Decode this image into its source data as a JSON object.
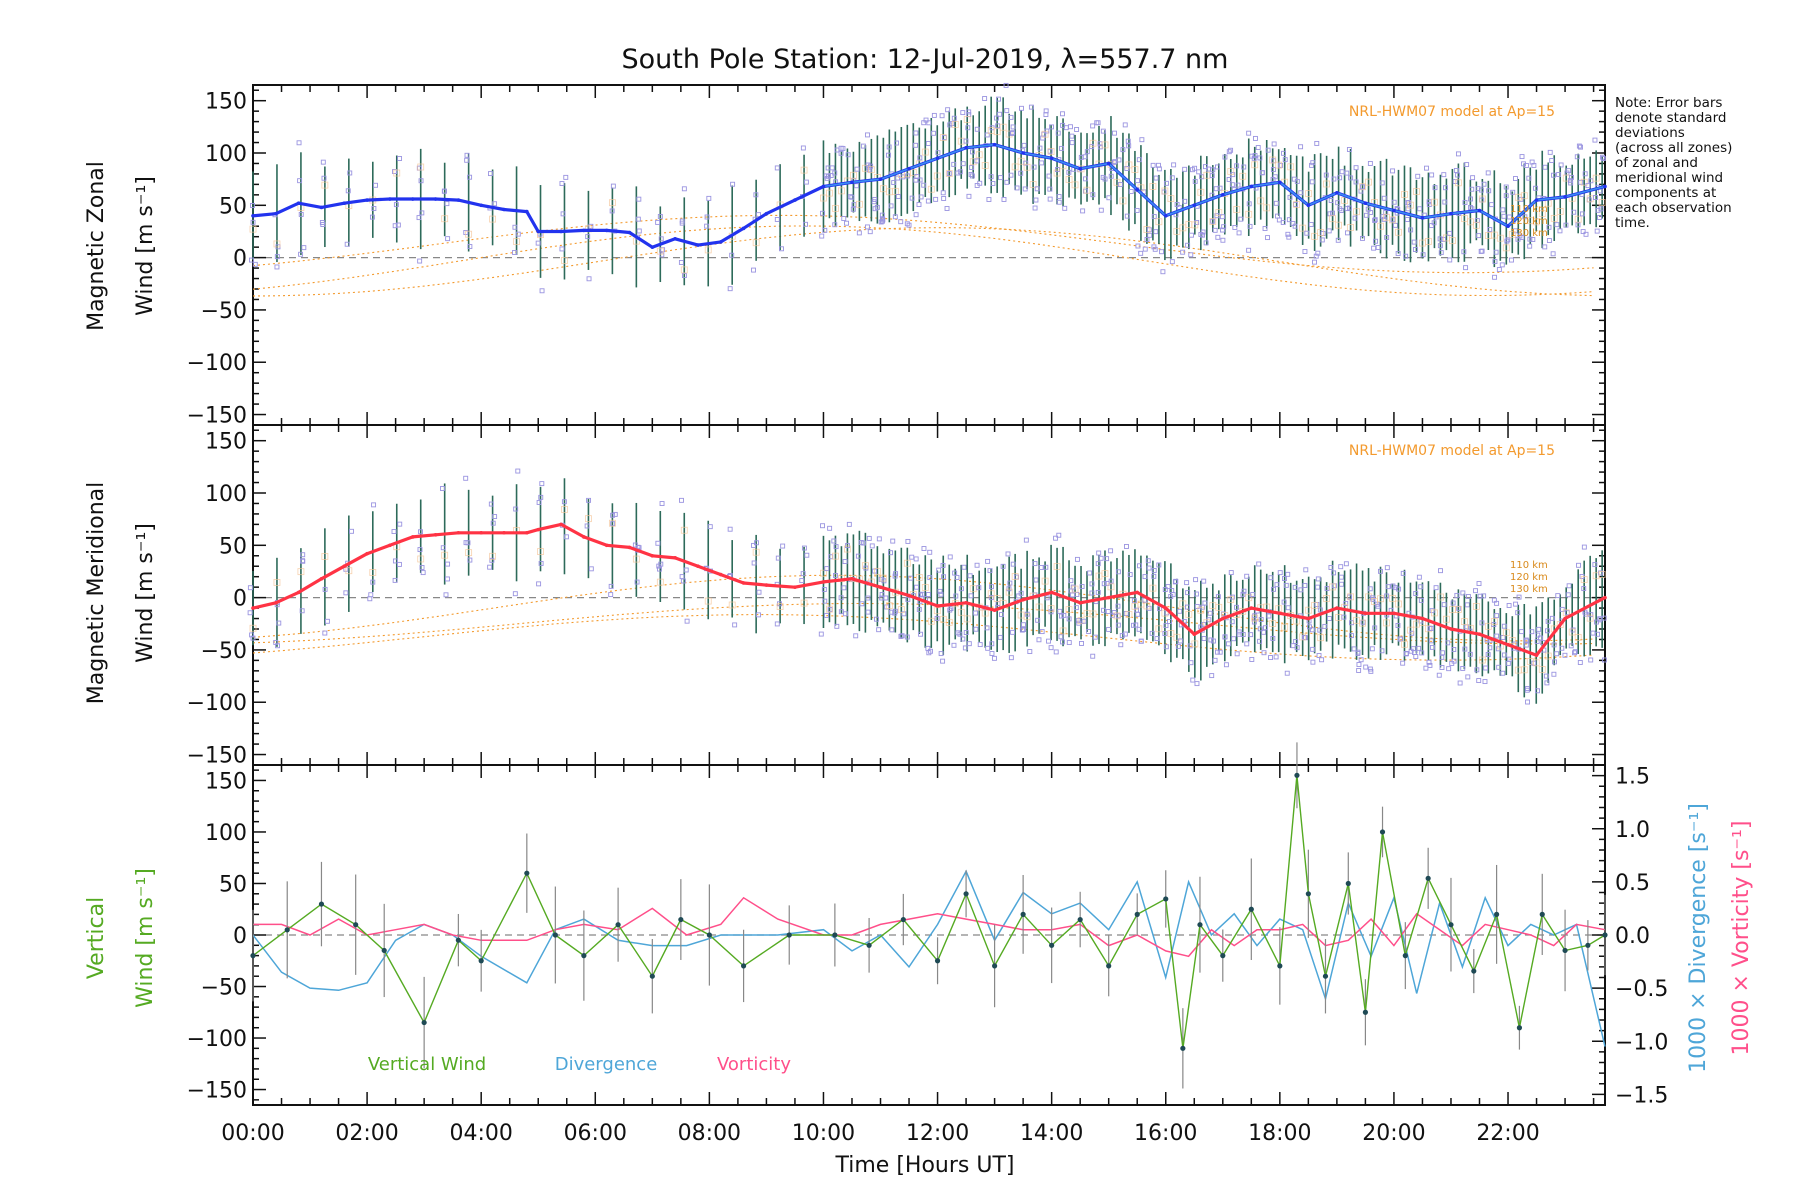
{
  "chart_data": {
    "type": "line",
    "title": "South Pole Station: 12-Jul-2019, λ=557.7 nm",
    "note": [
      "Note: Error bars",
      "denote standard",
      "deviations",
      "(across all zones)",
      "of zonal and",
      "meridional wind",
      "components at",
      "each observation",
      "time."
    ],
    "xlabel": "Time [Hours UT]",
    "x_ticks": [
      "00:00",
      "02:00",
      "04:00",
      "06:00",
      "08:00",
      "10:00",
      "12:00",
      "14:00",
      "16:00",
      "18:00",
      "20:00",
      "22:00"
    ],
    "xlim": [
      0,
      23.7
    ],
    "colors": {
      "zonal": "#2233ee",
      "zonal_light": "#3b8ef0",
      "meridional": "#ff3344",
      "vertical": "#55aa22",
      "divergence": "#4ea6d8",
      "vorticity": "#ff4f8a",
      "model": "#f39a2e",
      "scatter": "#9a94e0",
      "errbar": "#2d6b5a"
    },
    "panels": [
      {
        "id": "zonal",
        "ylabel_line1": "Magnetic Zonal",
        "ylabel_line2": "Wind [m s⁻¹]",
        "ylim": [
          -160,
          165
        ],
        "y_ticks": [
          150,
          100,
          50,
          0,
          -50,
          -100,
          -150
        ],
        "model_label": "NRL-HWM07 model at Ap=15",
        "model_altitudes": [
          "110 km",
          "120 km",
          "130 km"
        ],
        "series": {
          "name": "Magnetic Zonal Wind",
          "x": [
            0.0,
            0.4,
            0.8,
            1.2,
            1.6,
            2.0,
            2.4,
            2.8,
            3.2,
            3.6,
            4.0,
            4.4,
            4.8,
            5.0,
            5.4,
            5.8,
            6.2,
            6.6,
            7.0,
            7.4,
            7.8,
            8.2,
            8.6,
            9.0,
            9.5,
            10.0,
            10.5,
            11.0,
            11.5,
            12.0,
            12.5,
            13.0,
            13.5,
            14.0,
            14.5,
            15.0,
            15.5,
            16.0,
            16.5,
            17.0,
            17.5,
            18.0,
            18.5,
            19.0,
            19.5,
            20.0,
            20.5,
            21.0,
            21.5,
            22.0,
            22.5,
            23.0,
            23.7
          ],
          "y": [
            40,
            42,
            52,
            48,
            52,
            55,
            56,
            56,
            56,
            55,
            50,
            46,
            44,
            25,
            25,
            26,
            26,
            24,
            10,
            18,
            12,
            15,
            28,
            42,
            55,
            68,
            72,
            75,
            85,
            95,
            105,
            108,
            100,
            95,
            85,
            90,
            65,
            40,
            50,
            60,
            68,
            72,
            50,
            62,
            52,
            45,
            38,
            42,
            45,
            30,
            55,
            58,
            68
          ]
        }
      },
      {
        "id": "meridional",
        "ylabel_line1": "Magnetic Meridional",
        "ylabel_line2": "Wind [m s⁻¹]",
        "ylim": [
          -160,
          165
        ],
        "y_ticks": [
          150,
          100,
          50,
          0,
          -50,
          -100,
          -150
        ],
        "model_label": "NRL-HWM07 model at Ap=15",
        "model_altitudes": [
          "110 km",
          "120 km",
          "130 km"
        ],
        "series": {
          "name": "Magnetic Meridional Wind",
          "x": [
            0.0,
            0.4,
            0.8,
            1.2,
            1.6,
            2.0,
            2.4,
            2.8,
            3.2,
            3.6,
            4.0,
            4.4,
            4.8,
            5.0,
            5.4,
            5.8,
            6.2,
            6.6,
            7.0,
            7.4,
            7.8,
            8.2,
            8.6,
            9.0,
            9.5,
            10.0,
            10.5,
            11.0,
            11.5,
            12.0,
            12.5,
            13.0,
            13.5,
            14.0,
            14.5,
            15.0,
            15.5,
            16.0,
            16.5,
            17.0,
            17.5,
            18.0,
            18.5,
            19.0,
            19.5,
            20.0,
            20.5,
            21.0,
            21.5,
            22.0,
            22.5,
            23.0,
            23.7
          ],
          "y": [
            -10,
            -5,
            5,
            18,
            30,
            42,
            50,
            58,
            60,
            62,
            62,
            62,
            62,
            65,
            70,
            58,
            50,
            48,
            40,
            38,
            30,
            22,
            14,
            12,
            10,
            15,
            18,
            10,
            2,
            -8,
            -5,
            -12,
            -2,
            5,
            -5,
            0,
            5,
            -10,
            -35,
            -20,
            -10,
            -15,
            -20,
            -10,
            -15,
            -15,
            -20,
            -30,
            -35,
            -45,
            -55,
            -20,
            0
          ]
        }
      },
      {
        "id": "vertical",
        "ylabel_line1": "Vertical",
        "ylabel_line2": "Wind [m s⁻¹]",
        "ylim": [
          -165,
          165
        ],
        "y_ticks": [
          150,
          100,
          50,
          0,
          -50,
          -100,
          -150
        ],
        "right_axis": {
          "ylim": [
            -1.6,
            1.6
          ],
          "ticks": [
            "1.5",
            "1.0",
            "0.5",
            "0.0",
            "−0.5",
            "−1.0",
            "−1.5"
          ],
          "label_divergence": "1000 × Divergence [s⁻¹]",
          "label_vorticity": "1000 × Vorticity [s⁻¹]"
        },
        "legend": [
          "Vertical Wind",
          "Divergence",
          "Vorticity"
        ],
        "series": [
          {
            "name": "Vertical Wind",
            "x": [
              0.0,
              0.6,
              1.2,
              1.8,
              2.3,
              3.0,
              3.6,
              4.0,
              4.8,
              5.3,
              5.8,
              6.4,
              7.0,
              7.5,
              8.0,
              8.6,
              9.4,
              10.2,
              10.8,
              11.4,
              12.0,
              12.5,
              13.0,
              13.5,
              14.0,
              14.5,
              15.0,
              15.5,
              16.0,
              16.3,
              16.6,
              17.0,
              17.5,
              18.0,
              18.3,
              18.5,
              18.8,
              19.2,
              19.5,
              19.8,
              20.2,
              20.6,
              21.0,
              21.4,
              21.8,
              22.2,
              22.6,
              23.0,
              23.4,
              23.7
            ],
            "y": [
              -20,
              5,
              30,
              10,
              -15,
              -85,
              -5,
              -25,
              60,
              0,
              -20,
              10,
              -40,
              15,
              0,
              -30,
              0,
              0,
              -10,
              15,
              -25,
              40,
              -30,
              20,
              -10,
              15,
              -30,
              20,
              35,
              -110,
              10,
              -20,
              25,
              -30,
              155,
              40,
              -40,
              50,
              -75,
              100,
              -20,
              55,
              10,
              -35,
              20,
              -90,
              20,
              -15,
              -10,
              0
            ]
          },
          {
            "name": "Divergence",
            "x": [
              0.0,
              0.5,
              1.0,
              1.5,
              2.0,
              2.5,
              3.0,
              3.5,
              4.0,
              4.8,
              5.3,
              5.8,
              6.4,
              7.0,
              7.6,
              8.2,
              8.6,
              9.2,
              10.0,
              10.5,
              11.0,
              11.5,
              12.0,
              12.5,
              13.0,
              13.5,
              14.0,
              14.5,
              15.0,
              15.5,
              16.0,
              16.4,
              16.8,
              17.2,
              17.6,
              18.0,
              18.4,
              18.8,
              19.2,
              19.6,
              20.0,
              20.4,
              20.8,
              21.2,
              21.6,
              22.0,
              22.4,
              22.8,
              23.2,
              23.7
            ],
            "y": [
              0.0,
              -0.35,
              -0.5,
              -0.52,
              -0.45,
              -0.05,
              0.1,
              0.0,
              -0.2,
              -0.45,
              0.05,
              0.15,
              -0.05,
              -0.1,
              -0.1,
              0.0,
              0.0,
              0.0,
              0.05,
              -0.15,
              0.0,
              -0.3,
              0.1,
              0.6,
              -0.05,
              0.4,
              0.2,
              0.3,
              0.05,
              0.5,
              -0.4,
              0.5,
              0.0,
              0.2,
              -0.1,
              0.15,
              0.05,
              -0.6,
              0.3,
              -0.2,
              0.35,
              -0.55,
              0.3,
              -0.3,
              0.35,
              -0.1,
              0.1,
              0.0,
              0.1,
              -1.05
            ]
          },
          {
            "name": "Vorticity",
            "x": [
              0.0,
              0.5,
              1.0,
              1.5,
              2.0,
              2.5,
              3.0,
              3.5,
              4.0,
              4.8,
              5.3,
              5.8,
              6.4,
              7.0,
              7.6,
              8.2,
              8.6,
              9.2,
              10.0,
              10.5,
              11.0,
              11.5,
              12.0,
              12.5,
              13.0,
              13.5,
              14.0,
              14.5,
              15.0,
              15.5,
              16.0,
              16.4,
              16.8,
              17.2,
              17.6,
              18.0,
              18.4,
              18.8,
              19.2,
              19.6,
              20.0,
              20.4,
              20.8,
              21.2,
              21.6,
              22.0,
              22.4,
              22.8,
              23.2,
              23.7
            ],
            "y": [
              0.1,
              0.1,
              0.0,
              0.15,
              0.0,
              0.05,
              0.1,
              0.0,
              -0.05,
              -0.05,
              0.05,
              0.1,
              0.05,
              0.25,
              0.0,
              0.1,
              0.35,
              0.15,
              0.0,
              0.0,
              0.1,
              0.15,
              0.2,
              0.15,
              0.1,
              0.05,
              0.05,
              0.1,
              -0.1,
              0.0,
              -0.15,
              -0.2,
              0.05,
              -0.1,
              0.05,
              0.05,
              0.1,
              -0.1,
              -0.05,
              0.15,
              -0.1,
              0.2,
              0.05,
              -0.1,
              0.1,
              0.05,
              0.0,
              -0.1,
              0.1,
              0.05
            ]
          }
        ]
      }
    ]
  }
}
